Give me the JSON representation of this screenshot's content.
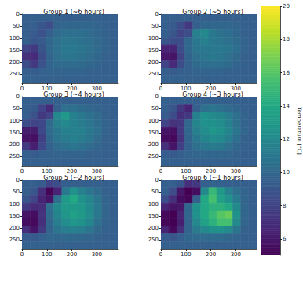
{
  "chart_data": {
    "type": "heatmap",
    "xlim": [
      0,
      384
    ],
    "ylim": [
      288,
      0
    ],
    "xticks": [
      0,
      100,
      200,
      300
    ],
    "yticks": [
      0,
      50,
      100,
      150,
      200,
      250
    ],
    "x_bins": [
      0,
      32,
      64,
      96,
      128,
      160,
      192,
      224,
      256,
      288,
      320,
      352,
      384
    ],
    "y_bins": [
      0,
      32,
      64,
      96,
      128,
      160,
      192,
      224,
      256,
      288
    ],
    "colorbar": {
      "label": "Temperature [°C]",
      "range": [
        5,
        20
      ],
      "ticks": [
        6,
        8,
        10,
        12,
        14,
        16,
        18,
        20
      ]
    },
    "panels": [
      {
        "title": "Group 1 (~6 hours)",
        "cells": [
          [
            9.5,
            9.5,
            9.5,
            9.5,
            9.5,
            9.5,
            9.5,
            9.5,
            9.5,
            9.5,
            9.5,
            9.5
          ],
          [
            9.5,
            9.5,
            9.0,
            8.5,
            9.8,
            10,
            10,
            10,
            10,
            9.8,
            9.6,
            9.5
          ],
          [
            9.5,
            9.3,
            8.8,
            9.5,
            10.2,
            10.5,
            10.5,
            10.4,
            10.2,
            10,
            9.7,
            9.5
          ],
          [
            9.5,
            9.0,
            9.3,
            10,
            10.5,
            10.8,
            10.8,
            10.6,
            10.4,
            10.1,
            9.8,
            9.5
          ],
          [
            8.0,
            7.5,
            9.0,
            10,
            10.6,
            11,
            11,
            10.8,
            10.5,
            10.2,
            9.8,
            9.5
          ],
          [
            7.0,
            6.8,
            8.5,
            9.8,
            10.5,
            10.8,
            10.8,
            10.6,
            10.3,
            10,
            9.7,
            9.5
          ],
          [
            8.5,
            7.5,
            8.8,
            9.8,
            10.2,
            10.3,
            10.3,
            10.2,
            10,
            9.8,
            9.6,
            9.5
          ],
          [
            9.5,
            9.4,
            9.6,
            9.8,
            9.8,
            9.8,
            9.8,
            9.8,
            9.7,
            9.6,
            9.5,
            9.5
          ],
          [
            9.6,
            9.6,
            9.6,
            9.6,
            9.6,
            9.6,
            9.6,
            9.6,
            9.6,
            9.6,
            9.6,
            9.6
          ]
        ]
      },
      {
        "title": "Group 2 (~5 hours)",
        "cells": [
          [
            9.5,
            9.5,
            9.5,
            9.5,
            9.5,
            9.5,
            9.5,
            9.5,
            9.5,
            9.5,
            9.5,
            9.5
          ],
          [
            9.5,
            9.3,
            8.5,
            7.5,
            9.5,
            10,
            10,
            10,
            10,
            9.8,
            9.6,
            9.5
          ],
          [
            9.5,
            9.0,
            8.0,
            8.5,
            11.5,
            12,
            11,
            10.6,
            10.4,
            10,
            9.7,
            9.5
          ],
          [
            9.0,
            8.5,
            8.5,
            10,
            11,
            11.5,
            11,
            10.8,
            10.6,
            10.2,
            9.8,
            9.5
          ],
          [
            6.5,
            6.5,
            8.5,
            10,
            10.8,
            11,
            11,
            11,
            10.8,
            10.4,
            9.8,
            9.5
          ],
          [
            6.0,
            5.8,
            8.0,
            9.8,
            10.5,
            10.8,
            11,
            10.8,
            10.5,
            10.1,
            9.7,
            9.5
          ],
          [
            8.0,
            6.8,
            8.5,
            9.6,
            10.2,
            10.4,
            10.5,
            10.4,
            10.2,
            9.8,
            9.6,
            9.5
          ],
          [
            9.5,
            9.3,
            9.5,
            9.7,
            9.8,
            9.8,
            9.8,
            9.8,
            9.7,
            9.6,
            9.5,
            9.5
          ],
          [
            9.6,
            9.6,
            9.6,
            9.6,
            9.6,
            9.6,
            9.6,
            9.6,
            9.6,
            9.6,
            9.6,
            9.6
          ]
        ]
      },
      {
        "title": "Group 3 (~4 hours)",
        "cells": [
          [
            9.5,
            9.5,
            9.5,
            9.5,
            9.5,
            9.5,
            9.5,
            9.5,
            9.5,
            9.5,
            9.5,
            9.5
          ],
          [
            9.5,
            9.2,
            8.0,
            6.8,
            9.5,
            10.5,
            10.5,
            10.2,
            10,
            9.8,
            9.6,
            9.5
          ],
          [
            9.5,
            8.8,
            7.5,
            8.0,
            12,
            13,
            11.5,
            11,
            10.6,
            10.2,
            9.7,
            9.5
          ],
          [
            8.5,
            8.0,
            8.2,
            10.2,
            11.5,
            12,
            11.5,
            11.2,
            10.8,
            10.3,
            9.8,
            9.5
          ],
          [
            6.2,
            6.2,
            8.2,
            10.2,
            11,
            11.5,
            11.5,
            11.5,
            11,
            10.5,
            9.8,
            9.5
          ],
          [
            5.8,
            5.6,
            7.8,
            10,
            10.8,
            11.2,
            11.5,
            11.2,
            10.8,
            10.2,
            9.7,
            9.5
          ],
          [
            7.5,
            6.3,
            8.2,
            9.6,
            10.3,
            10.6,
            10.8,
            10.6,
            10.3,
            9.9,
            9.6,
            9.5
          ],
          [
            9.5,
            9.3,
            9.5,
            9.7,
            9.8,
            9.8,
            9.8,
            9.8,
            9.7,
            9.6,
            9.5,
            9.5
          ],
          [
            9.6,
            9.6,
            9.6,
            9.6,
            9.6,
            9.6,
            9.6,
            9.6,
            9.6,
            9.6,
            9.6,
            9.6
          ]
        ]
      },
      {
        "title": "Group 4 (~3 hours)",
        "cells": [
          [
            9.5,
            9.5,
            9.5,
            9.5,
            9.5,
            9.5,
            9.5,
            9.5,
            9.5,
            9.5,
            9.5,
            9.5
          ],
          [
            9.5,
            9.0,
            7.5,
            6.5,
            9.5,
            10.5,
            10.8,
            10.5,
            10.2,
            9.9,
            9.6,
            9.5
          ],
          [
            9.3,
            8.5,
            7.0,
            7.5,
            11.5,
            12.5,
            12,
            11.8,
            11.2,
            10.5,
            9.8,
            9.5
          ],
          [
            8.0,
            7.2,
            7.5,
            10,
            11.8,
            12.5,
            12.5,
            12.2,
            11.5,
            10.6,
            9.8,
            9.5
          ],
          [
            5.8,
            5.6,
            7.5,
            10,
            11.5,
            12.2,
            12.8,
            12.5,
            11.8,
            10.8,
            9.9,
            9.5
          ],
          [
            5.5,
            5.3,
            7.2,
            9.8,
            11,
            11.8,
            12.2,
            12,
            11.3,
            10.4,
            9.7,
            9.5
          ],
          [
            7.0,
            5.8,
            7.8,
            9.6,
            10.5,
            11,
            11.2,
            11,
            10.5,
            10,
            9.6,
            9.5
          ],
          [
            9.4,
            9.2,
            9.5,
            9.8,
            9.9,
            10,
            10,
            10,
            9.9,
            9.7,
            9.5,
            9.5
          ],
          [
            9.6,
            9.6,
            9.6,
            9.6,
            9.6,
            9.6,
            9.6,
            9.6,
            9.6,
            9.6,
            9.6,
            9.6
          ]
        ]
      },
      {
        "title": "Group 5 (~2 hours)",
        "cells": [
          [
            9.5,
            9.5,
            9.3,
            8.0,
            8.5,
            9.5,
            9.5,
            9.5,
            9.5,
            9.5,
            9.5,
            9.5
          ],
          [
            9.5,
            9.0,
            7.0,
            5.2,
            6.5,
            11,
            12.5,
            11.5,
            10.8,
            10.2,
            9.7,
            9.5
          ],
          [
            9.0,
            8.0,
            6.5,
            5.8,
            10.5,
            13,
            14,
            12.5,
            11.8,
            10.8,
            9.8,
            9.5
          ],
          [
            7.5,
            6.8,
            7.0,
            10.5,
            12,
            13,
            13,
            12.8,
            12,
            11,
            9.9,
            9.5
          ],
          [
            5.8,
            5.5,
            7.2,
            10.2,
            11.8,
            12.8,
            13.5,
            13,
            12.2,
            11,
            9.9,
            9.5
          ],
          [
            5.5,
            5.3,
            7.0,
            10,
            11.3,
            12.2,
            12.8,
            12.5,
            11.8,
            10.6,
            9.8,
            9.5
          ],
          [
            7.0,
            5.8,
            7.5,
            9.8,
            10.8,
            11.3,
            11.5,
            11.3,
            10.8,
            10.1,
            9.6,
            9.5
          ],
          [
            9.4,
            9.2,
            9.6,
            9.9,
            10,
            10.1,
            10.1,
            10,
            9.9,
            9.7,
            9.5,
            9.5
          ],
          [
            9.6,
            9.6,
            9.6,
            9.6,
            9.6,
            9.6,
            9.6,
            9.6,
            9.6,
            9.6,
            9.6,
            9.6
          ]
        ]
      },
      {
        "title": "Group 6 (~1 hours)",
        "cells": [
          [
            9.5,
            9.5,
            9.0,
            7.0,
            7.5,
            9.5,
            9.8,
            9.6,
            9.5,
            9.5,
            9.5,
            9.5
          ],
          [
            9.5,
            8.5,
            6.0,
            5.0,
            5.5,
            12,
            15,
            13,
            11.5,
            10.5,
            9.8,
            9.5
          ],
          [
            8.5,
            7.0,
            5.5,
            5.2,
            9.5,
            14,
            15.5,
            13.5,
            12.5,
            11.2,
            9.9,
            9.5
          ],
          [
            6.5,
            5.8,
            6.0,
            10,
            12.5,
            14,
            14.5,
            14.5,
            14,
            12,
            10,
            9.5
          ],
          [
            5.3,
            5.0,
            6.5,
            10,
            12.5,
            14,
            15,
            16,
            16.5,
            12.5,
            10,
            9.5
          ],
          [
            5.2,
            5.0,
            6.3,
            9.8,
            12,
            13.5,
            14.5,
            15.5,
            15.5,
            12,
            9.9,
            9.5
          ],
          [
            6.5,
            5.3,
            7.0,
            9.8,
            11.2,
            12,
            12.5,
            12.5,
            12,
            10.8,
            9.7,
            9.5
          ],
          [
            9.3,
            9.0,
            9.5,
            10,
            10.2,
            10.3,
            10.3,
            10.2,
            10,
            9.8,
            9.5,
            9.5
          ],
          [
            9.6,
            9.6,
            9.6,
            9.6,
            9.6,
            9.6,
            9.6,
            9.6,
            9.6,
            9.6,
            9.6,
            9.6
          ]
        ]
      }
    ]
  }
}
